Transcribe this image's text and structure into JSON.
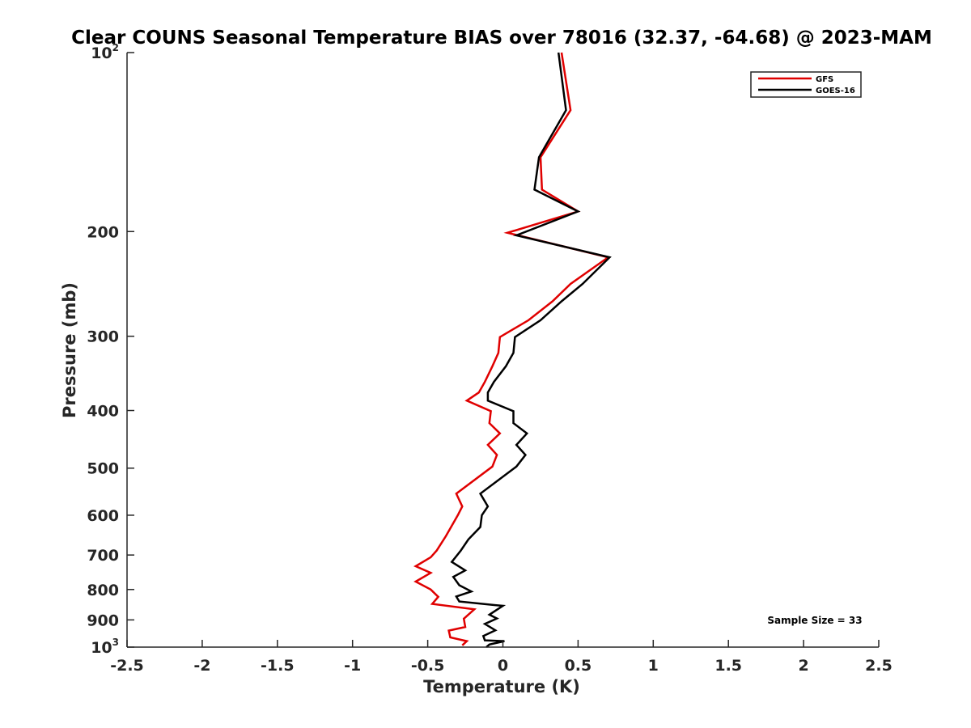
{
  "chart_data": {
    "type": "line",
    "title": "Clear COUNS Seasonal Temperature BIAS over 78016 (32.37, -64.68) @ 2023-MAM",
    "xlabel": "Temperature (K)",
    "ylabel": "Pressure (mb)",
    "xlim": [
      -2.5,
      2.5
    ],
    "ylim": [
      1000,
      100
    ],
    "yscale": "log",
    "x_ticks": [
      -2.5,
      -2,
      -1.5,
      -1,
      -0.5,
      0,
      0.5,
      1,
      1.5,
      2,
      2.5
    ],
    "x_tick_labels": [
      "-2.5",
      "-2",
      "-1.5",
      "-1",
      "-0.5",
      "0",
      "0.5",
      "1",
      "1.5",
      "2",
      "2.5"
    ],
    "y_ticks": [
      100,
      200,
      300,
      400,
      500,
      600,
      700,
      800,
      900,
      1000
    ],
    "y_tick_labels": [
      {
        "base": "10",
        "sup": "2"
      },
      {
        "base": "200",
        "sup": ""
      },
      {
        "base": "300",
        "sup": ""
      },
      {
        "base": "400",
        "sup": ""
      },
      {
        "base": "500",
        "sup": ""
      },
      {
        "base": "600",
        "sup": ""
      },
      {
        "base": "700",
        "sup": ""
      },
      {
        "base": "800",
        "sup": ""
      },
      {
        "base": "900",
        "sup": ""
      },
      {
        "base": "10",
        "sup": "3"
      }
    ],
    "grid": false,
    "legend_position": "top-right",
    "annotation": "Sample Size = 33",
    "series": [
      {
        "name": "GFS",
        "color": "#e00000",
        "points": [
          [
            0.39,
            100
          ],
          [
            0.45,
            125
          ],
          [
            0.25,
            150
          ],
          [
            0.26,
            170
          ],
          [
            0.5,
            185
          ],
          [
            0.03,
            201
          ],
          [
            0.7,
            221
          ],
          [
            0.45,
            245
          ],
          [
            0.33,
            262
          ],
          [
            0.17,
            282
          ],
          [
            -0.02,
            301
          ],
          [
            -0.03,
            320
          ],
          [
            -0.07,
            337
          ],
          [
            -0.12,
            358
          ],
          [
            -0.16,
            373
          ],
          [
            -0.24,
            385
          ],
          [
            -0.08,
            401
          ],
          [
            -0.09,
            420
          ],
          [
            -0.02,
            437
          ],
          [
            -0.1,
            457
          ],
          [
            -0.04,
            475
          ],
          [
            -0.07,
            497
          ],
          [
            -0.31,
            552
          ],
          [
            -0.27,
            580
          ],
          [
            -0.3,
            600
          ],
          [
            -0.38,
            651
          ],
          [
            -0.44,
            688
          ],
          [
            -0.48,
            706
          ],
          [
            -0.58,
            731
          ],
          [
            -0.48,
            750
          ],
          [
            -0.58,
            776
          ],
          [
            -0.48,
            800
          ],
          [
            -0.43,
            823
          ],
          [
            -0.47,
            846
          ],
          [
            -0.19,
            864
          ],
          [
            -0.26,
            896
          ],
          [
            -0.25,
            925
          ],
          [
            -0.36,
            938
          ],
          [
            -0.35,
            963
          ],
          [
            -0.24,
            977
          ],
          [
            -0.27,
            993
          ]
        ]
      },
      {
        "name": "GOES-16",
        "color": "#000000",
        "points": [
          [
            0.37,
            100
          ],
          [
            0.42,
            125
          ],
          [
            0.24,
            150
          ],
          [
            0.21,
            170
          ],
          [
            0.5,
            185
          ],
          [
            0.09,
            203
          ],
          [
            0.71,
            221
          ],
          [
            0.53,
            245
          ],
          [
            0.39,
            262
          ],
          [
            0.25,
            282
          ],
          [
            0.08,
            301
          ],
          [
            0.07,
            320
          ],
          [
            0.02,
            337
          ],
          [
            -0.06,
            358
          ],
          [
            -0.1,
            373
          ],
          [
            -0.1,
            385
          ],
          [
            0.07,
            401
          ],
          [
            0.07,
            420
          ],
          [
            0.16,
            437
          ],
          [
            0.09,
            457
          ],
          [
            0.15,
            475
          ],
          [
            0.09,
            497
          ],
          [
            -0.15,
            552
          ],
          [
            -0.1,
            580
          ],
          [
            -0.14,
            600
          ],
          [
            -0.15,
            628
          ],
          [
            -0.23,
            659
          ],
          [
            -0.28,
            688
          ],
          [
            -0.34,
            719
          ],
          [
            -0.25,
            743
          ],
          [
            -0.33,
            762
          ],
          [
            -0.29,
            787
          ],
          [
            -0.21,
            806
          ],
          [
            -0.31,
            822
          ],
          [
            -0.29,
            838
          ],
          [
            -0.05,
            850
          ],
          [
            0.0,
            852
          ],
          [
            -0.09,
            882
          ],
          [
            -0.04,
            895
          ],
          [
            -0.12,
            914
          ],
          [
            -0.05,
            937
          ],
          [
            -0.13,
            958
          ],
          [
            -0.12,
            974
          ],
          [
            0.01,
            977
          ],
          [
            -0.09,
            990
          ],
          [
            -0.11,
            1000
          ]
        ]
      }
    ]
  }
}
